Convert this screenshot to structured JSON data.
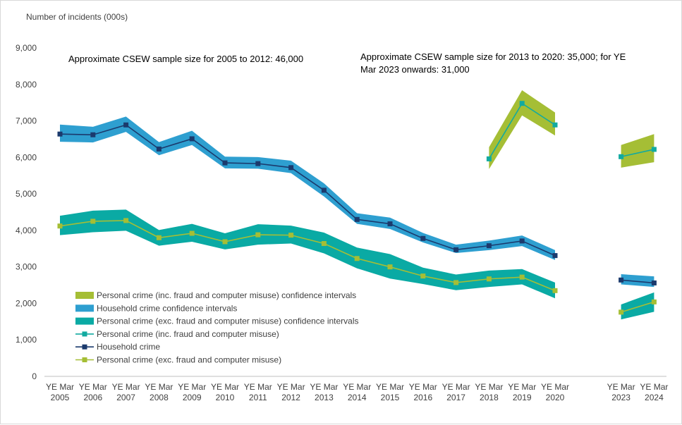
{
  "chart_data": {
    "type": "line",
    "ylabel": "Number of incidents (000s)",
    "ylim": [
      0,
      9000
    ],
    "yticks": [
      "0",
      "1,000",
      "2,000",
      "3,000",
      "4,000",
      "5,000",
      "6,000",
      "7,000",
      "8,000",
      "9,000"
    ],
    "categories": [
      {
        "top": "YE Mar",
        "bottom": "2005"
      },
      {
        "top": "YE Mar",
        "bottom": "2006"
      },
      {
        "top": "YE Mar",
        "bottom": "2007"
      },
      {
        "top": "YE Mar",
        "bottom": "2008"
      },
      {
        "top": "YE Mar",
        "bottom": "2009"
      },
      {
        "top": "YE Mar",
        "bottom": "2010"
      },
      {
        "top": "YE Mar",
        "bottom": "2011"
      },
      {
        "top": "YE Mar",
        "bottom": "2012"
      },
      {
        "top": "YE Mar",
        "bottom": "2013"
      },
      {
        "top": "YE Mar",
        "bottom": "2014"
      },
      {
        "top": "YE Mar",
        "bottom": "2015"
      },
      {
        "top": "YE Mar",
        "bottom": "2016"
      },
      {
        "top": "YE Mar",
        "bottom": "2017"
      },
      {
        "top": "YE Mar",
        "bottom": "2018"
      },
      {
        "top": "YE Mar",
        "bottom": "2019"
      },
      {
        "top": "YE Mar",
        "bottom": "2020"
      },
      {
        "top": "",
        "bottom": ""
      },
      {
        "top": "YE Mar",
        "bottom": "2023"
      },
      {
        "top": "YE Mar",
        "bottom": "2024"
      }
    ],
    "annotations": [
      "Approximate CSEW sample size for 2005 to 2012: 46,000",
      "Approximate CSEW sample size for 2013 to 2020: 35,000; for YE Mar 2023 onwards: 31,000"
    ],
    "bands": [
      {
        "name": "Personal crime (inc. fraud and computer misuse) confidence intervals",
        "color": "#a5be35",
        "lower": [
          null,
          null,
          null,
          null,
          null,
          null,
          null,
          null,
          null,
          null,
          null,
          null,
          null,
          5680,
          7150,
          6600,
          null,
          5720,
          5870
        ],
        "upper": [
          null,
          null,
          null,
          null,
          null,
          null,
          null,
          null,
          null,
          null,
          null,
          null,
          null,
          6280,
          7840,
          7230,
          null,
          6340,
          6640
        ]
      },
      {
        "name": "Household crime confidence intervals",
        "color": "#2e9fd0",
        "lower": [
          6430,
          6410,
          6700,
          6060,
          6340,
          5700,
          5690,
          5570,
          4930,
          4180,
          4040,
          3670,
          3380,
          3460,
          3570,
          3190,
          null,
          2520,
          2450
        ],
        "upper": [
          6900,
          6840,
          7120,
          6420,
          6730,
          6020,
          6010,
          5910,
          5290,
          4470,
          4350,
          3930,
          3610,
          3720,
          3860,
          3460,
          null,
          2800,
          2740
        ]
      },
      {
        "name": "Personal crime (exc. fraud and computer misuse) confidence intervals",
        "color": "#0aaaa4",
        "lower": [
          3870,
          3950,
          3990,
          3580,
          3690,
          3480,
          3610,
          3640,
          3370,
          2960,
          2680,
          2530,
          2360,
          2450,
          2520,
          2140,
          null,
          1560,
          1770
        ],
        "upper": [
          4400,
          4540,
          4570,
          4010,
          4180,
          3920,
          4170,
          4130,
          3940,
          3530,
          3350,
          2980,
          2790,
          2900,
          2940,
          2570,
          null,
          1970,
          2300
        ]
      }
    ],
    "series": [
      {
        "name": "Personal crime (inc. fraud and computer misuse)",
        "color": "#12aaa0",
        "values": [
          null,
          null,
          null,
          null,
          null,
          null,
          null,
          null,
          null,
          null,
          null,
          null,
          null,
          5960,
          7480,
          6890,
          null,
          6020,
          6220
        ]
      },
      {
        "name": "Household crime",
        "color": "#1b3a6d",
        "values": [
          6640,
          6620,
          6890,
          6230,
          6510,
          5850,
          5830,
          5720,
          5100,
          4300,
          4180,
          3780,
          3470,
          3580,
          3710,
          3310,
          null,
          2640,
          2560
        ]
      },
      {
        "name": "Personal crime (exc. fraud and computer misuse)",
        "color": "#a5be35",
        "values": [
          4120,
          4250,
          4270,
          3800,
          3920,
          3690,
          3880,
          3870,
          3640,
          3230,
          3000,
          2750,
          2570,
          2670,
          2720,
          2350,
          null,
          1760,
          2040
        ]
      }
    ],
    "legend_order": [
      {
        "kind": "band",
        "index": 0
      },
      {
        "kind": "band",
        "index": 1
      },
      {
        "kind": "band",
        "index": 2
      },
      {
        "kind": "line",
        "index": 0
      },
      {
        "kind": "line",
        "index": 1
      },
      {
        "kind": "line",
        "index": 2
      }
    ]
  }
}
